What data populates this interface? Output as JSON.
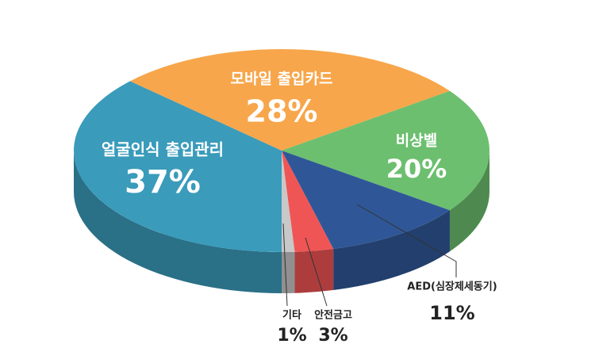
{
  "chart_data": {
    "type": "pie",
    "categories": [
      "얼굴인식 출입관리",
      "모바일 출입카드",
      "비상벨",
      "AED(심장제세동기)",
      "안전금고",
      "기타"
    ],
    "values": [
      37,
      28,
      20,
      11,
      3,
      1
    ],
    "value_labels": [
      "37%",
      "28%",
      "20%",
      "11%",
      "3%",
      "1%"
    ],
    "colors": [
      "#3a9bbb",
      "#f7a64b",
      "#6cbf6f",
      "#2f5797",
      "#f05555",
      "#c8c8c8"
    ]
  }
}
